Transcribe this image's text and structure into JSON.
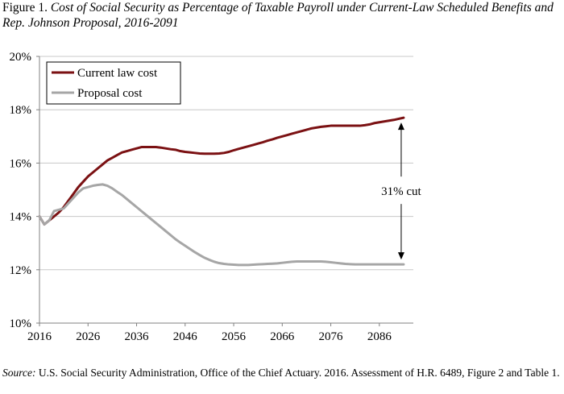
{
  "figure": {
    "label": "Figure 1.",
    "title": "Cost of Social Security as Percentage of Taxable Payroll under Current-Law Scheduled Benefits and Rep. Johnson Proposal, 2016-2091"
  },
  "source": {
    "label": "Source:",
    "text": "U.S. Social Security Administration, Office of the Chief Actuary. 2016. Assessment of H.R. 6489, Figure 2 and Table 1."
  },
  "annotation": {
    "text": "31% cut"
  },
  "colors": {
    "current_law": "#7b1113",
    "proposal": "#a6a6a6",
    "grid": "#c8c8c8",
    "axis": "#808080"
  },
  "chart_data": {
    "type": "line",
    "title": "",
    "xlabel": "",
    "ylabel": "",
    "xlim": [
      2016,
      2093
    ],
    "ylim": [
      10,
      20
    ],
    "yticks": [
      10,
      12,
      14,
      16,
      18,
      20
    ],
    "ytick_labels": [
      "10%",
      "12%",
      "14%",
      "16%",
      "18%",
      "20%"
    ],
    "xticks": [
      2016,
      2026,
      2036,
      2046,
      2056,
      2066,
      2076,
      2086
    ],
    "xtick_labels": [
      "2016",
      "2026",
      "2036",
      "2046",
      "2056",
      "2066",
      "2076",
      "2086"
    ],
    "grid": true,
    "legend_position": "top-left",
    "series": [
      {
        "name": "Current law cost",
        "color": "#7b1113",
        "x": [
          2016,
          2017,
          2018,
          2019,
          2020,
          2021,
          2022,
          2023,
          2024,
          2025,
          2026,
          2027,
          2028,
          2029,
          2030,
          2031,
          2032,
          2033,
          2034,
          2035,
          2036,
          2037,
          2038,
          2039,
          2040,
          2041,
          2042,
          2043,
          2044,
          2045,
          2046,
          2047,
          2048,
          2049,
          2050,
          2051,
          2052,
          2053,
          2054,
          2055,
          2056,
          2057,
          2058,
          2059,
          2060,
          2061,
          2062,
          2063,
          2064,
          2065,
          2066,
          2067,
          2068,
          2069,
          2070,
          2071,
          2072,
          2073,
          2074,
          2075,
          2076,
          2077,
          2078,
          2079,
          2080,
          2081,
          2082,
          2083,
          2084,
          2085,
          2086,
          2087,
          2088,
          2089,
          2090,
          2091
        ],
        "values": [
          14.0,
          13.7,
          13.85,
          14.0,
          14.15,
          14.35,
          14.6,
          14.85,
          15.1,
          15.3,
          15.5,
          15.65,
          15.8,
          15.95,
          16.1,
          16.2,
          16.3,
          16.4,
          16.45,
          16.5,
          16.55,
          16.6,
          16.6,
          16.6,
          16.6,
          16.58,
          16.55,
          16.52,
          16.5,
          16.45,
          16.42,
          16.4,
          16.38,
          16.36,
          16.35,
          16.35,
          16.35,
          16.36,
          16.38,
          16.42,
          16.48,
          16.53,
          16.58,
          16.63,
          16.68,
          16.73,
          16.78,
          16.84,
          16.89,
          16.95,
          17.0,
          17.05,
          17.1,
          17.15,
          17.2,
          17.25,
          17.3,
          17.33,
          17.36,
          17.38,
          17.4,
          17.4,
          17.4,
          17.4,
          17.4,
          17.4,
          17.4,
          17.42,
          17.45,
          17.5,
          17.53,
          17.56,
          17.59,
          17.62,
          17.66,
          17.7
        ]
      },
      {
        "name": "Proposal cost",
        "color": "#a6a6a6",
        "x": [
          2016,
          2017,
          2018,
          2019,
          2020,
          2021,
          2022,
          2023,
          2024,
          2025,
          2026,
          2027,
          2028,
          2029,
          2030,
          2031,
          2032,
          2033,
          2034,
          2035,
          2036,
          2037,
          2038,
          2039,
          2040,
          2041,
          2042,
          2043,
          2044,
          2045,
          2046,
          2047,
          2048,
          2049,
          2050,
          2051,
          2052,
          2053,
          2054,
          2055,
          2056,
          2057,
          2058,
          2059,
          2060,
          2061,
          2062,
          2063,
          2064,
          2065,
          2066,
          2067,
          2068,
          2069,
          2070,
          2071,
          2072,
          2073,
          2074,
          2075,
          2076,
          2077,
          2078,
          2079,
          2080,
          2081,
          2082,
          2083,
          2084,
          2085,
          2086,
          2087,
          2088,
          2089,
          2090,
          2091
        ],
        "values": [
          14.0,
          13.7,
          13.85,
          14.2,
          14.25,
          14.3,
          14.5,
          14.7,
          14.9,
          15.05,
          15.1,
          15.15,
          15.18,
          15.2,
          15.15,
          15.05,
          14.92,
          14.8,
          14.65,
          14.5,
          14.35,
          14.2,
          14.05,
          13.9,
          13.75,
          13.6,
          13.45,
          13.3,
          13.15,
          13.02,
          12.9,
          12.78,
          12.66,
          12.55,
          12.45,
          12.37,
          12.3,
          12.25,
          12.22,
          12.2,
          12.19,
          12.18,
          12.18,
          12.18,
          12.19,
          12.2,
          12.21,
          12.22,
          12.23,
          12.24,
          12.26,
          12.28,
          12.3,
          12.31,
          12.31,
          12.31,
          12.31,
          12.31,
          12.31,
          12.3,
          12.28,
          12.26,
          12.24,
          12.22,
          12.21,
          12.2,
          12.2,
          12.2,
          12.2,
          12.2,
          12.2,
          12.2,
          12.2,
          12.2,
          12.2,
          12.2
        ]
      }
    ]
  }
}
